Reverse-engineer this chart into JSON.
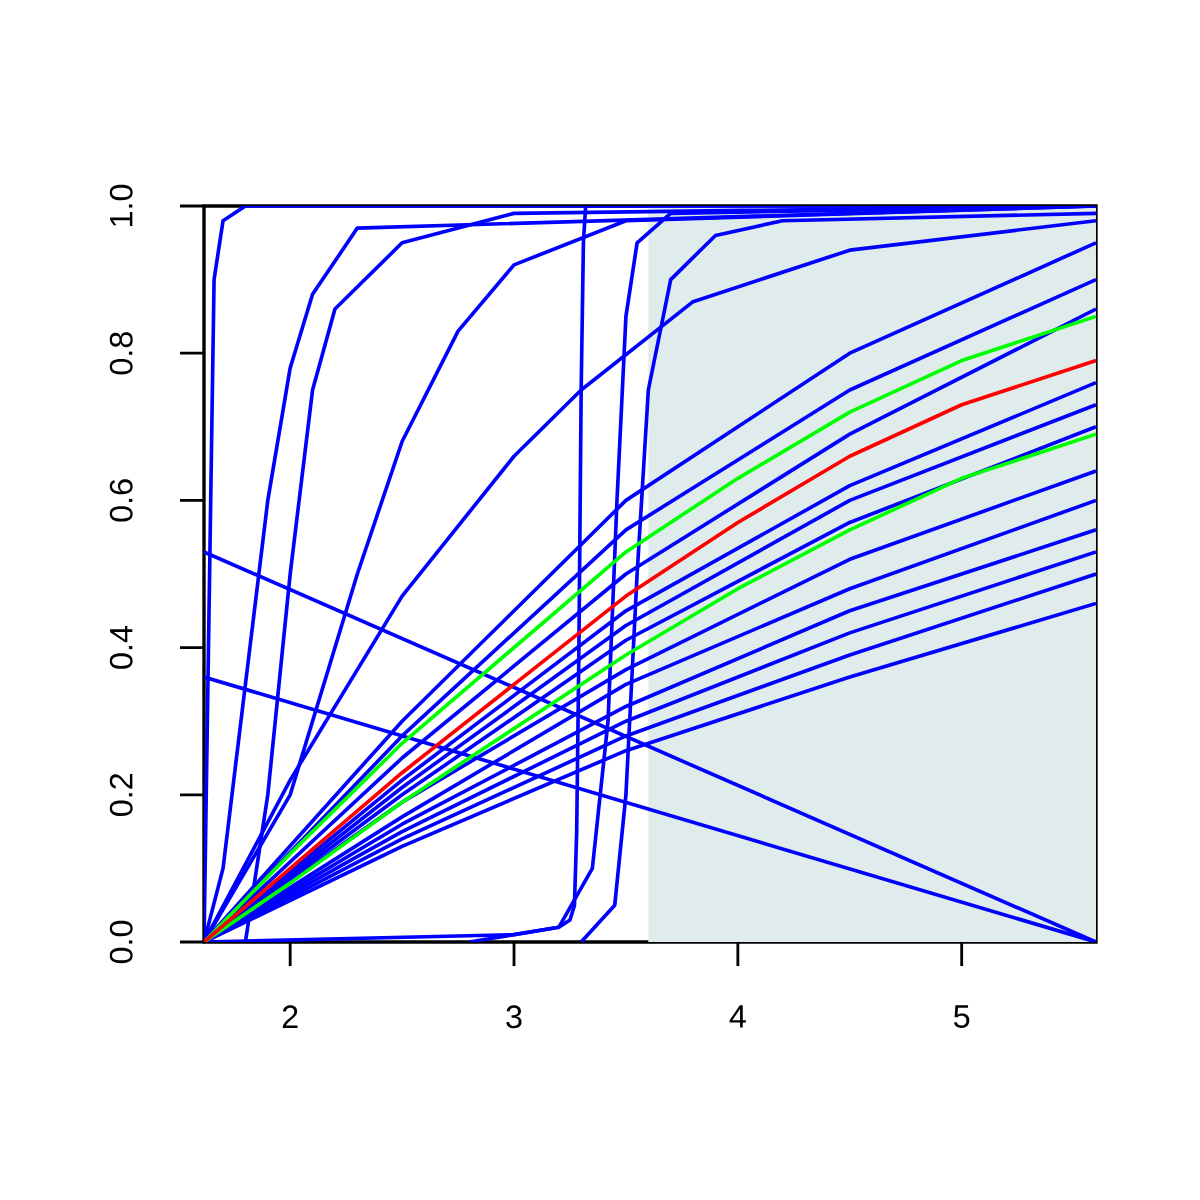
{
  "chart_data": {
    "type": "line",
    "xlim": [
      1.615,
      5.6
    ],
    "ylim": [
      0,
      1
    ],
    "xticks": [
      2,
      3,
      4,
      5
    ],
    "yticks": [
      {
        "value": 0,
        "label": "0.0"
      },
      0.2,
      0.4,
      0.6,
      0.8,
      {
        "value": 1,
        "label": "1.0"
      }
    ],
    "marker": "none",
    "line_style": "solid",
    "bands": [
      {
        "axis": "x",
        "from": 3.6,
        "to": 5.6,
        "color": "#e0ecec"
      }
    ],
    "series": [
      {
        "color": "#0000ff",
        "x": [
          1.615,
          1.63,
          1.66,
          1.7,
          1.8,
          5.6
        ],
        "values": [
          0,
          0.3,
          0.9,
          0.98,
          1.0,
          1.0
        ]
      },
      {
        "color": "#0000ff",
        "x": [
          1.615,
          1.7,
          1.8,
          1.9,
          2.0,
          2.1,
          2.3,
          5.6
        ],
        "values": [
          0,
          0.1,
          0.35,
          0.6,
          0.78,
          0.88,
          0.97,
          1.0
        ]
      },
      {
        "color": "#0000ff",
        "x": [
          1.8,
          1.9,
          2.0,
          2.1,
          2.2,
          2.5,
          3.0,
          5.6
        ],
        "values": [
          0,
          0.2,
          0.5,
          0.75,
          0.86,
          0.95,
          0.99,
          1.0
        ]
      },
      {
        "color": "#0000ff",
        "x": [
          1.615,
          2.0,
          2.3,
          2.5,
          2.75,
          3.0,
          3.5,
          5.6
        ],
        "values": [
          0,
          0.2,
          0.5,
          0.68,
          0.83,
          0.92,
          0.98,
          1.0
        ]
      },
      {
        "color": "#0000ff",
        "x": [
          1.615,
          2.0,
          2.5,
          3.0,
          3.3,
          3.8,
          4.5,
          5.6
        ],
        "values": [
          0,
          0.22,
          0.47,
          0.66,
          0.75,
          0.87,
          0.94,
          0.98
        ]
      },
      {
        "color": "#0000ff",
        "x": [
          1.615,
          3.0,
          3.2,
          3.25,
          3.27,
          3.28,
          3.29,
          3.3,
          3.31,
          3.32,
          5.6
        ],
        "values": [
          0,
          0.01,
          0.02,
          0.03,
          0.05,
          0.15,
          0.4,
          0.75,
          0.95,
          1.0,
          1.0
        ]
      },
      {
        "color": "#0000ff",
        "x": [
          2.8,
          3.2,
          3.35,
          3.42,
          3.46,
          3.5,
          3.55,
          3.7,
          5.6
        ],
        "values": [
          0,
          0.02,
          0.1,
          0.3,
          0.6,
          0.85,
          0.95,
          0.99,
          1.0
        ]
      },
      {
        "color": "#0000ff",
        "x": [
          3.3,
          3.45,
          3.5,
          3.55,
          3.6,
          3.7,
          3.9,
          4.2,
          5.6
        ],
        "values": [
          0,
          0.05,
          0.2,
          0.5,
          0.75,
          0.9,
          0.96,
          0.98,
          0.99
        ]
      },
      {
        "color": "#0000ff",
        "x": [
          1.615,
          5.6
        ],
        "values": [
          0.53,
          0
        ]
      },
      {
        "color": "#0000ff",
        "x": [
          1.615,
          5.6
        ],
        "values": [
          0.36,
          0
        ]
      },
      {
        "color": "#0000ff",
        "x": [
          1.615,
          2.5,
          3.5,
          4.5,
          5.6
        ],
        "values": [
          0,
          0.3,
          0.6,
          0.8,
          0.95
        ]
      },
      {
        "color": "#0000ff",
        "x": [
          1.615,
          2.5,
          3.5,
          4.5,
          5.6
        ],
        "values": [
          0,
          0.28,
          0.56,
          0.75,
          0.9
        ]
      },
      {
        "color": "#0000ff",
        "x": [
          1.615,
          2.5,
          3.5,
          4.5,
          5.6
        ],
        "values": [
          0,
          0.25,
          0.5,
          0.69,
          0.86
        ]
      },
      {
        "color": "#0000ff",
        "x": [
          1.615,
          2.5,
          3.5,
          4.5,
          5.6
        ],
        "values": [
          0,
          0.22,
          0.45,
          0.62,
          0.76
        ]
      },
      {
        "color": "#0000ff",
        "x": [
          1.615,
          2.5,
          3.5,
          4.5,
          5.6
        ],
        "values": [
          0,
          0.21,
          0.43,
          0.6,
          0.73
        ]
      },
      {
        "color": "#0000ff",
        "x": [
          1.615,
          2.5,
          3.5,
          4.5,
          5.6
        ],
        "values": [
          0,
          0.2,
          0.41,
          0.57,
          0.7
        ]
      },
      {
        "color": "#0000ff",
        "x": [
          1.615,
          2.5,
          3.5,
          4.5,
          5.6
        ],
        "values": [
          0,
          0.19,
          0.37,
          0.52,
          0.64
        ]
      },
      {
        "color": "#0000ff",
        "x": [
          1.615,
          2.5,
          3.5,
          4.5,
          5.6
        ],
        "values": [
          0,
          0.17,
          0.35,
          0.48,
          0.6
        ]
      },
      {
        "color": "#0000ff",
        "x": [
          1.615,
          2.5,
          3.5,
          4.5,
          5.6
        ],
        "values": [
          0,
          0.16,
          0.32,
          0.45,
          0.56
        ]
      },
      {
        "color": "#0000ff",
        "x": [
          1.615,
          2.5,
          3.5,
          4.5,
          5.6
        ],
        "values": [
          0,
          0.15,
          0.3,
          0.42,
          0.53
        ]
      },
      {
        "color": "#0000ff",
        "x": [
          1.615,
          2.5,
          3.5,
          4.5,
          5.6
        ],
        "values": [
          0,
          0.14,
          0.28,
          0.39,
          0.5
        ]
      },
      {
        "color": "#0000ff",
        "x": [
          1.615,
          2.5,
          3.5,
          4.5,
          5.6
        ],
        "values": [
          0,
          0.13,
          0.26,
          0.36,
          0.46
        ]
      },
      {
        "color": "#00ff00",
        "x": [
          1.615,
          2.0,
          2.5,
          3.0,
          3.5,
          4.0,
          4.5,
          5.0,
          5.6
        ],
        "values": [
          0,
          0.12,
          0.27,
          0.4,
          0.53,
          0.63,
          0.72,
          0.79,
          0.85
        ]
      },
      {
        "color": "#00ff00",
        "x": [
          1.615,
          2.0,
          2.5,
          3.0,
          3.5,
          4.0,
          4.5,
          5.0,
          5.6
        ],
        "values": [
          0,
          0.08,
          0.19,
          0.29,
          0.39,
          0.48,
          0.56,
          0.63,
          0.69
        ]
      },
      {
        "color": "#ff0000",
        "x": [
          1.615,
          2.0,
          2.5,
          3.0,
          3.5,
          4.0,
          4.5,
          5.0,
          5.6
        ],
        "values": [
          0,
          0.1,
          0.23,
          0.35,
          0.47,
          0.57,
          0.66,
          0.73,
          0.79
        ]
      }
    ]
  }
}
